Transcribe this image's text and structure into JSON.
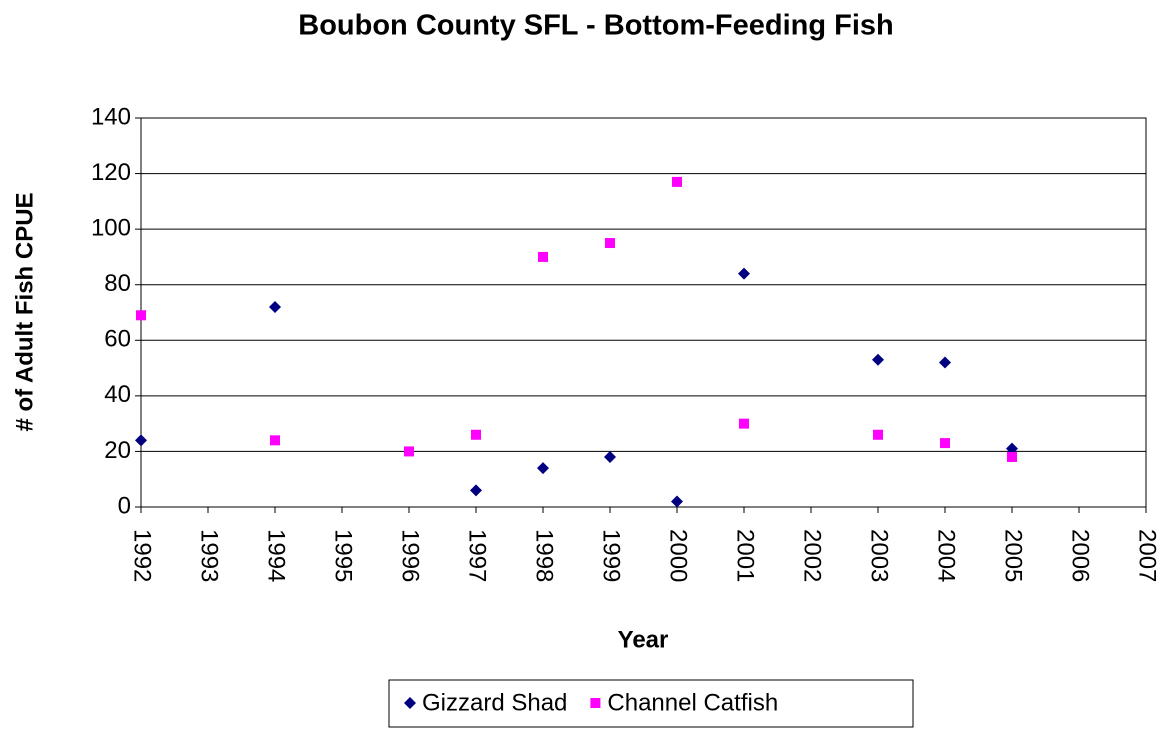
{
  "chart_data": {
    "type": "scatter",
    "title": "Boubon County SFL - Bottom-Feeding Fish",
    "x_label": "Year",
    "y_label": "# of Adult Fish CPUE",
    "series": [
      {
        "name": "Gizzard Shad",
        "color": "#000080",
        "marker": "diamond",
        "x": [
          1992,
          1994,
          1997,
          1998,
          1999,
          2000,
          2001,
          2003,
          2004,
          2005
        ],
        "values": [
          24,
          72,
          6,
          14,
          18,
          2,
          84,
          53,
          52,
          21
        ]
      },
      {
        "name": "Channel Catfish",
        "color": "#ff00ff",
        "marker": "square",
        "x": [
          1992,
          1994,
          1996,
          1997,
          1998,
          1999,
          2000,
          2001,
          2003,
          2004,
          2005
        ],
        "values": [
          69,
          24,
          20,
          26,
          90,
          95,
          117,
          30,
          26,
          23,
          18
        ]
      }
    ],
    "xlim": [
      1992,
      2007
    ],
    "xticks": [
      1992,
      1993,
      1994,
      1995,
      1996,
      1997,
      1998,
      1999,
      2000,
      2001,
      2002,
      2003,
      2004,
      2005,
      2006,
      2007
    ],
    "ylim": [
      0,
      140
    ],
    "yticks": [
      0,
      20,
      40,
      60,
      80,
      100,
      120,
      140
    ],
    "grid": true,
    "legend": "bottom"
  }
}
